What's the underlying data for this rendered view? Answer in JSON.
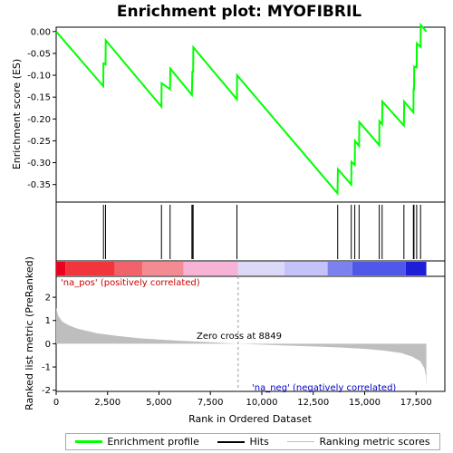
{
  "chart_data": {
    "type": "line",
    "title": "Enrichment plot: MYOFIBRIL",
    "x_axis": {
      "label": "Rank in Ordered Dataset",
      "range": [
        0,
        18900
      ],
      "ticks": [
        0,
        2500,
        5000,
        7500,
        10000,
        12500,
        15000,
        17500
      ],
      "tick_labels": [
        "0",
        "2,500",
        "5,000",
        "7,500",
        "10,000",
        "12,500",
        "15,000",
        "17,500"
      ]
    },
    "es_panel": {
      "ylabel": "Enrichment score (ES)",
      "ylim": [
        -0.39,
        0.01
      ],
      "ticks": [
        0.0,
        -0.05,
        -0.1,
        -0.15,
        -0.2,
        -0.25,
        -0.3,
        -0.35
      ],
      "tick_labels": [
        "0.00",
        "-0.05",
        "-0.10",
        "-0.15",
        "-0.20",
        "-0.25",
        "-0.30",
        "-0.35"
      ],
      "series_name": "Enrichment profile",
      "color": "#00ff00",
      "points": [
        [
          0,
          0.0
        ],
        [
          2290,
          -0.125
        ],
        [
          2300,
          -0.073
        ],
        [
          2400,
          -0.075
        ],
        [
          2410,
          -0.02
        ],
        [
          5120,
          -0.172
        ],
        [
          5130,
          -0.118
        ],
        [
          5540,
          -0.132
        ],
        [
          5550,
          -0.085
        ],
        [
          6600,
          -0.145
        ],
        [
          6620,
          -0.092
        ],
        [
          6660,
          -0.092
        ],
        [
          6670,
          -0.036
        ],
        [
          8790,
          -0.155
        ],
        [
          8800,
          -0.1
        ],
        [
          13680,
          -0.37
        ],
        [
          13700,
          -0.315
        ],
        [
          14350,
          -0.35
        ],
        [
          14360,
          -0.298
        ],
        [
          14520,
          -0.305
        ],
        [
          14530,
          -0.25
        ],
        [
          14730,
          -0.262
        ],
        [
          14740,
          -0.207
        ],
        [
          15710,
          -0.26
        ],
        [
          15720,
          -0.205
        ],
        [
          15850,
          -0.212
        ],
        [
          15860,
          -0.16
        ],
        [
          16910,
          -0.215
        ],
        [
          16920,
          -0.16
        ],
        [
          17370,
          -0.185
        ],
        [
          17380,
          -0.132
        ],
        [
          17400,
          -0.132
        ],
        [
          17410,
          -0.08
        ],
        [
          17530,
          -0.082
        ],
        [
          17540,
          -0.027
        ],
        [
          17720,
          -0.035
        ],
        [
          17730,
          0.015
        ],
        [
          18000,
          0.0
        ]
      ]
    },
    "hits_panel": {
      "series_name": "Hits",
      "positions": [
        2300,
        2400,
        5120,
        5540,
        6600,
        6620,
        6660,
        8790,
        13690,
        14350,
        14520,
        14730,
        15710,
        15850,
        16910,
        17370,
        17400,
        17530,
        17720
      ]
    },
    "rank_bar": {
      "color_stops": [
        {
          "x": 0,
          "color": "#e8001e"
        },
        {
          "x": 450,
          "color": "#f0353c"
        },
        {
          "x": 2850,
          "color": "#f2626b"
        },
        {
          "x": 4200,
          "color": "#f48a92"
        },
        {
          "x": 6200,
          "color": "#f7b3d5"
        },
        {
          "x": 8849,
          "color": "#dcd8f8"
        },
        {
          "x": 11100,
          "color": "#c4c2f8"
        },
        {
          "x": 13200,
          "color": "#7b82f0"
        },
        {
          "x": 14400,
          "color": "#4f58e8"
        },
        {
          "x": 17000,
          "color": "#1e1ed8"
        },
        {
          "x": 18000,
          "color": "#1e1ed8"
        }
      ]
    },
    "metric_panel": {
      "ylabel": "Ranked list metric (PreRanked)",
      "ylim": [
        -2.05,
        2.9
      ],
      "ticks": [
        2,
        1,
        0,
        -1,
        -2
      ],
      "tick_labels": [
        "2",
        "1",
        "0",
        "-1",
        "-2"
      ],
      "series_name": "Ranking metric scores",
      "color": "#bebebe",
      "points": [
        [
          0,
          1.55
        ],
        [
          100,
          1.2
        ],
        [
          300,
          0.95
        ],
        [
          600,
          0.8
        ],
        [
          1000,
          0.66
        ],
        [
          1500,
          0.55
        ],
        [
          2000,
          0.45
        ],
        [
          3000,
          0.33
        ],
        [
          4000,
          0.24
        ],
        [
          5000,
          0.18
        ],
        [
          6000,
          0.13
        ],
        [
          7000,
          0.09
        ],
        [
          8000,
          0.04
        ],
        [
          8849,
          0.0
        ],
        [
          10000,
          -0.04
        ],
        [
          11000,
          -0.07
        ],
        [
          12000,
          -0.1
        ],
        [
          13000,
          -0.13
        ],
        [
          14000,
          -0.17
        ],
        [
          15000,
          -0.22
        ],
        [
          16000,
          -0.3
        ],
        [
          16800,
          -0.4
        ],
        [
          17300,
          -0.55
        ],
        [
          17700,
          -0.75
        ],
        [
          17900,
          -1.05
        ],
        [
          17980,
          -1.4
        ],
        [
          18000,
          -1.9
        ]
      ],
      "zero_cross": 8849
    },
    "annotations": {
      "pos_label": "'na_pos' (positively correlated)",
      "neg_label": "'na_neg' (negatively correlated)",
      "zero_cross_label": "Zero cross at 8849"
    },
    "legend": [
      {
        "label": "Enrichment profile",
        "color": "#00ff00"
      },
      {
        "label": "Hits",
        "color": "#000000"
      },
      {
        "label": "Ranking metric scores",
        "color": "#bebebe"
      }
    ]
  }
}
